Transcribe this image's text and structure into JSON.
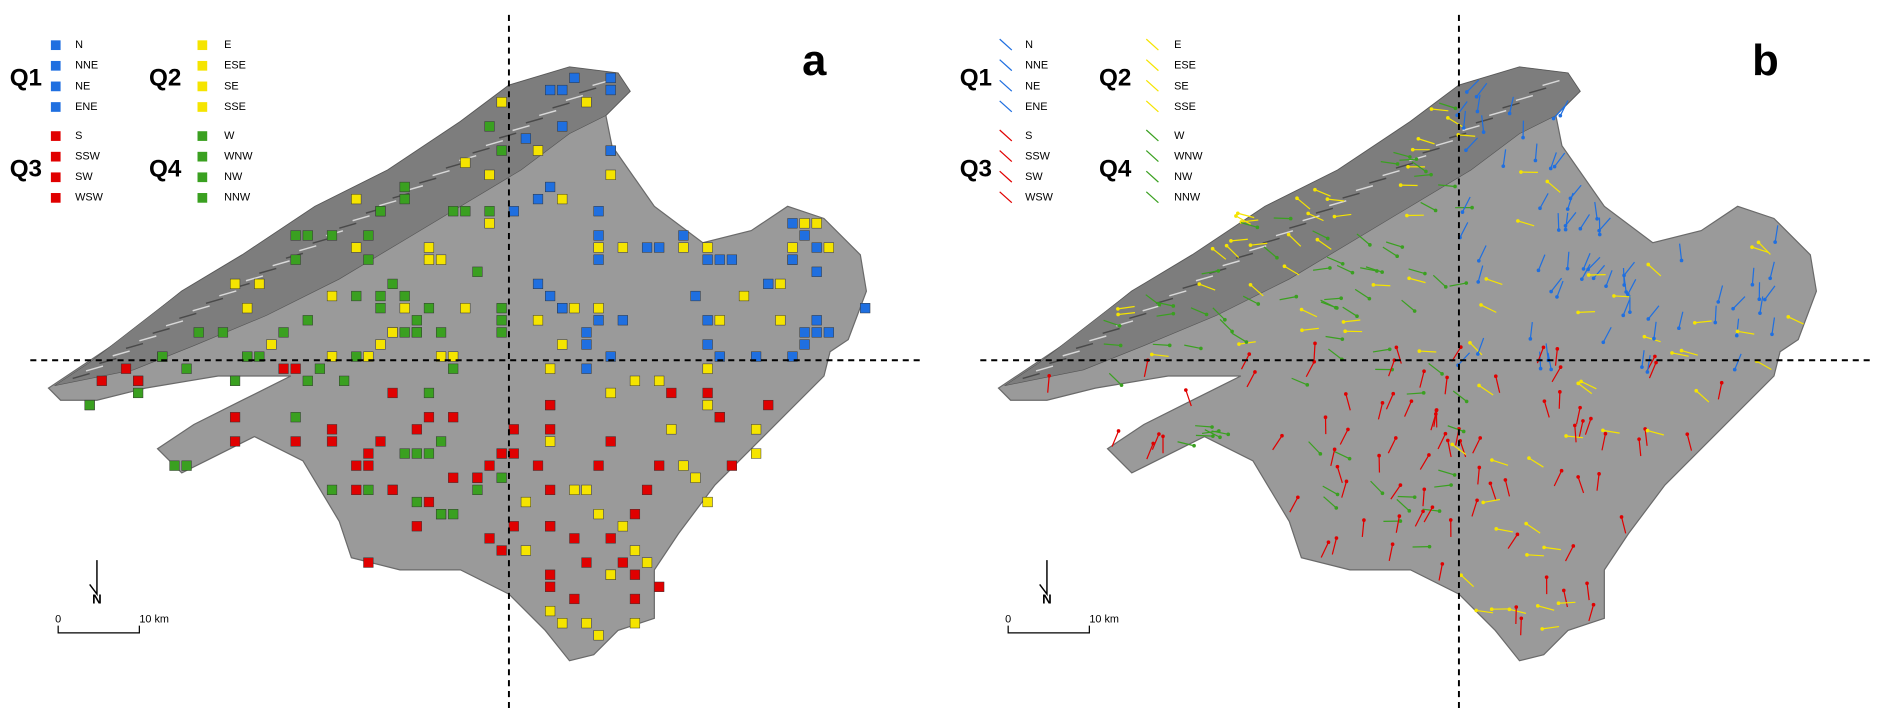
{
  "panels": [
    {
      "label": "a"
    },
    {
      "label": "b"
    }
  ],
  "legend": {
    "groups": [
      {
        "name": "Q1",
        "items": [
          "N",
          "NNE",
          "NE",
          "ENE"
        ]
      },
      {
        "name": "Q2",
        "items": [
          "E",
          "ESE",
          "SE",
          "SSE"
        ]
      },
      {
        "name": "Q3",
        "items": [
          "S",
          "SSW",
          "SW",
          "WSW"
        ]
      },
      {
        "name": "Q4",
        "items": [
          "W",
          "WNW",
          "NW",
          "NNW"
        ]
      }
    ]
  },
  "scale": {
    "start": "0",
    "end": "10 km"
  },
  "north": "N"
}
